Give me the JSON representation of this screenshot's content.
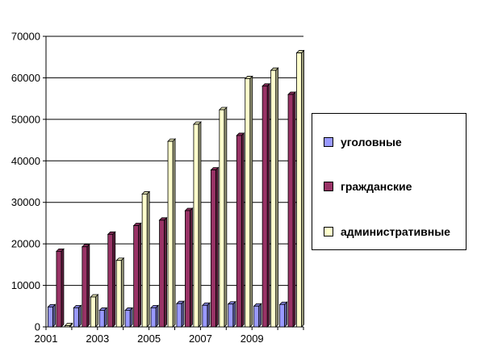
{
  "chart_data": {
    "type": "bar",
    "title": "",
    "xlabel": "",
    "ylabel": "",
    "ylim": [
      0,
      70000
    ],
    "yticks": [
      0,
      10000,
      20000,
      30000,
      40000,
      50000,
      60000,
      70000
    ],
    "x_tick_labels": [
      "2001",
      "2003",
      "2005",
      "2007",
      "2009"
    ],
    "categories": [
      "2001",
      "2002",
      "2003",
      "2004",
      "2005",
      "2006",
      "2007",
      "2008",
      "2009",
      "2010"
    ],
    "grid": true,
    "legend_position": "right",
    "series": [
      {
        "name": "уголовные",
        "color": "#9999ff",
        "values": [
          4800,
          4600,
          4000,
          4000,
          4600,
          5600,
          5200,
          5500,
          5000,
          5400
        ]
      },
      {
        "name": "гражданские",
        "color": "#993366",
        "values": [
          18200,
          19300,
          22300,
          24400,
          25700,
          28000,
          37800,
          46100,
          58000,
          56000
        ]
      },
      {
        "name": "административные",
        "color": "#ffffcc",
        "values": [
          0,
          7200,
          16000,
          32000,
          44700,
          48800,
          52300,
          59800,
          61800,
          66000
        ]
      }
    ]
  }
}
